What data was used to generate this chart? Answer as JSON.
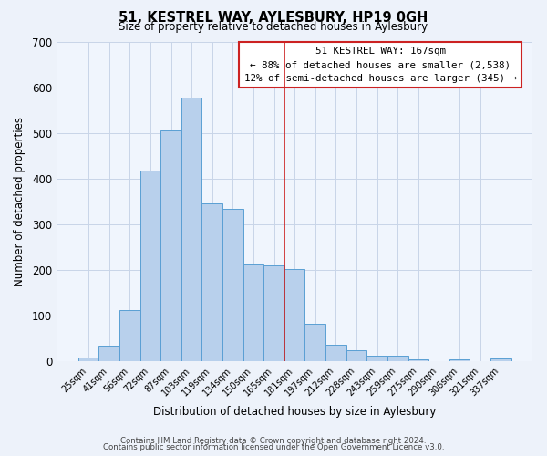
{
  "title": "51, KESTREL WAY, AYLESBURY, HP19 0GH",
  "subtitle": "Size of property relative to detached houses in Aylesbury",
  "xlabel": "Distribution of detached houses by size in Aylesbury",
  "ylabel": "Number of detached properties",
  "bar_labels": [
    "25sqm",
    "41sqm",
    "56sqm",
    "72sqm",
    "87sqm",
    "103sqm",
    "119sqm",
    "134sqm",
    "150sqm",
    "165sqm",
    "181sqm",
    "197sqm",
    "212sqm",
    "228sqm",
    "243sqm",
    "259sqm",
    "275sqm",
    "290sqm",
    "306sqm",
    "321sqm",
    "337sqm"
  ],
  "bar_values": [
    8,
    35,
    113,
    418,
    507,
    578,
    346,
    334,
    212,
    210,
    203,
    82,
    36,
    25,
    12,
    13,
    5,
    0,
    5,
    0,
    7
  ],
  "bar_color": "#b8d0ec",
  "bar_edge_color": "#5a9fd4",
  "vline_x_index": 9,
  "vline_color": "#cc2222",
  "annotation_title": "51 KESTREL WAY: 167sqm",
  "annotation_line1": "← 88% of detached houses are smaller (2,538)",
  "annotation_line2": "12% of semi-detached houses are larger (345) →",
  "ylim": [
    0,
    700
  ],
  "yticks": [
    0,
    100,
    200,
    300,
    400,
    500,
    600,
    700
  ],
  "footer_line1": "Contains HM Land Registry data © Crown copyright and database right 2024.",
  "footer_line2": "Contains public sector information licensed under the Open Government Licence v3.0.",
  "bg_color": "#edf2fa",
  "plot_bg_color": "#f0f5fd",
  "grid_color": "#c8d4e8"
}
